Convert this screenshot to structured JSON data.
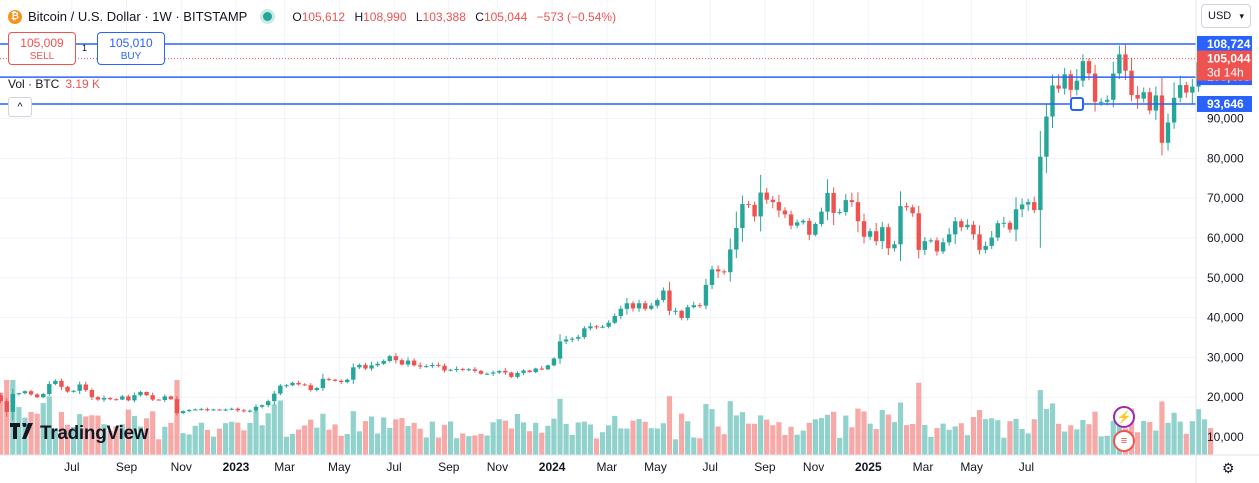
{
  "header": {
    "coin_icon": "bitcoin-icon",
    "symbol": "Bitcoin / U.S. Dollar · 1W · BITSTAMP",
    "status": "market-open-dot",
    "o_label": "O",
    "o_value": "105,612",
    "h_label": "H",
    "h_value": "108,990",
    "l_label": "L",
    "l_value": "103,388",
    "c_label": "C",
    "c_value": "105,044",
    "change": "−573 (−0.54%)"
  },
  "trade": {
    "sell_price": "105,009",
    "sell_label": "SELL",
    "spread": "1",
    "buy_price": "105,010",
    "buy_label": "BUY"
  },
  "volume": {
    "label": "Vol · BTC",
    "value": "3.19 K"
  },
  "collapse_glyph": "^",
  "currency": "USD",
  "logo": "TradingView",
  "colors": {
    "up": "#26a69a",
    "down": "#ef5350",
    "line": "#2962ff"
  },
  "chart_data": {
    "type": "candlestick",
    "ylim": [
      5000,
      118000
    ],
    "y_ticks": [
      10000,
      20000,
      30000,
      40000,
      50000,
      60000,
      70000,
      80000,
      90000
    ],
    "y_tick_labels": [
      "10,000",
      "20,000",
      "30,000",
      "40,000",
      "50,000",
      "60,000",
      "70,000",
      "80,000",
      "90,000"
    ],
    "x_labels": [
      "Jul",
      "Sep",
      "Nov",
      "2023",
      "Mar",
      "May",
      "Jul",
      "Sep",
      "Nov",
      "2024",
      "Mar",
      "May",
      "Jul",
      "Sep",
      "Nov",
      "2025",
      "Mar",
      "May",
      "Jul"
    ],
    "x_label_bold": [
      false,
      false,
      false,
      true,
      false,
      false,
      false,
      false,
      false,
      true,
      false,
      false,
      false,
      false,
      false,
      true,
      false,
      false,
      false
    ],
    "x_label_week": [
      4,
      13,
      22,
      31,
      39,
      48,
      57,
      66,
      74,
      83,
      92,
      100,
      109,
      118,
      126,
      135,
      144,
      152,
      161
    ],
    "horizontal_levels": [
      108724,
      100405,
      93646
    ],
    "level_labels": [
      "108,724",
      "100,405",
      "93,646"
    ],
    "last_price": "105,044",
    "countdown": "3d 14h",
    "last_value": 105044,
    "weekly_close": [
      19300,
      20500,
      19000,
      16300,
      20800,
      21000,
      21500,
      20700,
      20000,
      20800,
      23300,
      24100,
      22600,
      21400,
      21600,
      23200,
      21800,
      20000,
      19400,
      19800,
      19500,
      19400,
      20200,
      19200,
      20500,
      21300,
      20500,
      19400,
      19300,
      20200,
      19500,
      16000,
      16500,
      16800,
      16900,
      17000,
      16700,
      16900,
      16800,
      16900,
      17100,
      16700,
      16500,
      16600,
      17600,
      18000,
      19000,
      20900,
      22900,
      23000,
      23600,
      23200,
      23000,
      21800,
      22300,
      24600,
      24400,
      24100,
      23800,
      24400,
      27500,
      28100,
      27200,
      28000,
      28400,
      29100,
      30300,
      29300,
      28200,
      29200,
      28000,
      27700,
      27800,
      28100,
      27900,
      26700,
      26900,
      27100,
      26900,
      27000,
      26600,
      25900,
      25900,
      26200,
      26600,
      26200,
      25100,
      26100,
      26700,
      26300,
      27200,
      27000,
      28000,
      29700,
      34000,
      34500,
      34700,
      35100,
      37300,
      37800,
      37600,
      37700,
      38700,
      40400,
      42200,
      43600,
      42300,
      43600,
      42200,
      43000,
      44400,
      46800,
      41700,
      41700,
      39900,
      42600,
      43100,
      43000,
      48200,
      52100,
      51600,
      51400,
      57100,
      62500,
      68500,
      68300,
      65400,
      71400,
      69600,
      69000,
      66900,
      65900,
      63100,
      63900,
      64300,
      60800,
      63500,
      66600,
      71300,
      66300,
      66500,
      69500,
      69000,
      64200,
      60300,
      61700,
      59200,
      62700,
      57400,
      58400,
      68000,
      67700,
      66200,
      57000,
      59200,
      59400,
      56600,
      58900,
      60900,
      64200,
      62700,
      63300,
      60900,
      57000,
      58000,
      60100,
      63700,
      63800,
      62100,
      67200,
      68400,
      69000,
      67000,
      80400,
      90500,
      98300,
      97500,
      101100,
      97200,
      99500,
      104400,
      101300,
      94200,
      94200,
      94700,
      101300,
      106100,
      102000,
      95900,
      95000,
      96600,
      92000,
      95800,
      83900,
      89000,
      95200,
      98400,
      96500,
      98000,
      104100,
      107200,
      105044
    ],
    "volume_note": "relative weekly volume bars shown at chart bottom"
  }
}
